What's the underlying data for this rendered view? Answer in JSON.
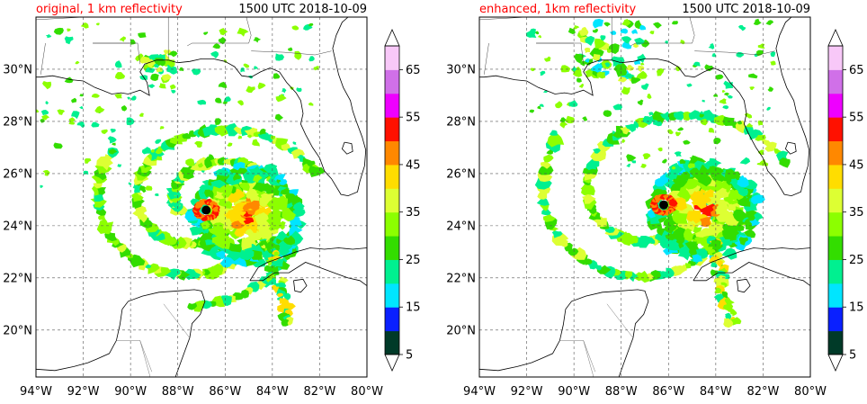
{
  "panels": [
    {
      "id": "original",
      "title_left": "original, 1 km reflectivity",
      "title_right": "1500 UTC 2018-10-09"
    },
    {
      "id": "enhanced",
      "title_left": "enhanced, 1km reflectivity",
      "title_right": "1500 UTC 2018-10-09"
    }
  ],
  "map_extent": {
    "lon_min": -94,
    "lon_max": -80,
    "lat_min": 18.2,
    "lat_max": 32
  },
  "lon_ticks": [
    {
      "value": -94,
      "label": "94°W"
    },
    {
      "value": -92,
      "label": "92°W"
    },
    {
      "value": -90,
      "label": "90°W"
    },
    {
      "value": -88,
      "label": "88°W"
    },
    {
      "value": -86,
      "label": "86°W"
    },
    {
      "value": -84,
      "label": "84°W"
    },
    {
      "value": -82,
      "label": "82°W"
    },
    {
      "value": -80,
      "label": "80°W"
    }
  ],
  "lat_ticks": [
    {
      "value": 20,
      "label": "20°N"
    },
    {
      "value": 22,
      "label": "22°N"
    },
    {
      "value": 24,
      "label": "24°N"
    },
    {
      "value": 26,
      "label": "26°N"
    },
    {
      "value": 28,
      "label": "28°N"
    },
    {
      "value": 30,
      "label": "30°N"
    }
  ],
  "colorbar": {
    "bounds": [
      5,
      10,
      15,
      20,
      25,
      30,
      35,
      40,
      45,
      50,
      55,
      60,
      65,
      70
    ],
    "labels": [
      "5",
      "15",
      "25",
      "35",
      "45",
      "55",
      "65"
    ],
    "colors": [
      "#003a28",
      "#0a20ff",
      "#00e5ff",
      "#00f090",
      "#33dd00",
      "#8cff00",
      "#ddff33",
      "#ffdd00",
      "#ff8800",
      "#ff1100",
      "#ee00ff",
      "#d070e8",
      "#f8c8f8"
    ]
  },
  "colors": {
    "title": "#ff0000",
    "text": "#000000",
    "coast": "#000000",
    "grid": "#555555"
  },
  "storm_centers": {
    "original": [
      -86.8,
      24.6
    ],
    "enhanced": [
      -86.2,
      24.8
    ]
  }
}
